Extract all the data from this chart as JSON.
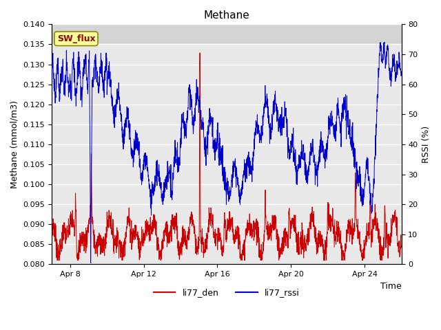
{
  "title": "Methane",
  "xlabel": "Time",
  "ylabel_left": "Methane (mmol/m3)",
  "ylabel_right": "RSSI (%)",
  "ylim_left": [
    0.08,
    0.14
  ],
  "ylim_right": [
    0,
    80
  ],
  "yticks_left": [
    0.08,
    0.085,
    0.09,
    0.095,
    0.1,
    0.105,
    0.11,
    0.115,
    0.12,
    0.125,
    0.13,
    0.135,
    0.14
  ],
  "yticks_right": [
    0,
    10,
    20,
    30,
    40,
    50,
    60,
    70,
    80
  ],
  "xtick_labels": [
    "Apr 8",
    "Apr 12",
    "Apr 16",
    "Apr 20",
    "Apr 24"
  ],
  "xtick_positions": [
    8,
    12,
    16,
    20,
    24
  ],
  "xrange": [
    7.0,
    26.0
  ],
  "legend_entries": [
    "li77_den",
    "li77_rssi"
  ],
  "legend_colors": [
    "#cc0000",
    "#0000cc"
  ],
  "line_color_red": "#cc0000",
  "line_color_blue": "#0000cc",
  "bg_gray": "#e8e8e8",
  "bg_gray_top": "#d4d4d4",
  "grid_color": "#ffffff",
  "annotation_text": "SW_flux",
  "annotation_color": "#990000",
  "annotation_bg": "#ffff99",
  "annotation_border": "#888800"
}
